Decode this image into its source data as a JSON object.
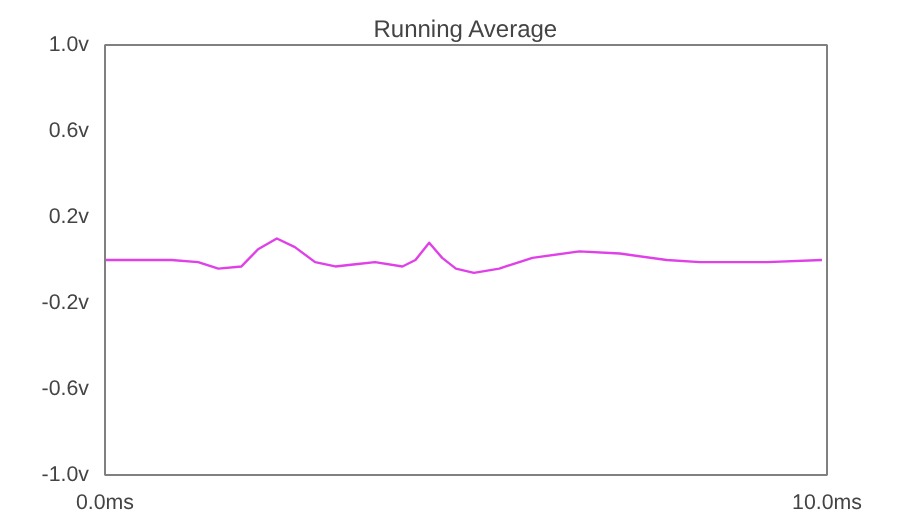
{
  "chart_data": {
    "type": "line",
    "title": "Running Average",
    "x": [
      0,
      0.92,
      1.29,
      1.57,
      1.89,
      2.12,
      2.38,
      2.63,
      2.91,
      3.19,
      3.47,
      3.74,
      4.12,
      4.3,
      4.49,
      4.67,
      4.86,
      5.11,
      5.46,
      5.92,
      6.57,
      7.13,
      7.78,
      8.24,
      9.17,
      9.93
    ],
    "series": [
      {
        "color": "#e040e8",
        "values": [
          0,
          0,
          -0.01,
          -0.04,
          -0.03,
          0.05,
          0.1,
          0.06,
          -0.01,
          -0.03,
          -0.02,
          -0.01,
          -0.03,
          0,
          0.08,
          0.01,
          -0.04,
          -0.06,
          -0.04,
          0.01,
          0.04,
          0.03,
          0,
          -0.01,
          -0.01,
          0
        ]
      }
    ],
    "xlim": [
      0,
      10
    ],
    "ylim": [
      -1,
      1
    ],
    "xticks": [
      {
        "value": 0,
        "label": "0.0ms"
      },
      {
        "value": 10,
        "label": "10.0ms"
      }
    ],
    "yticks": [
      {
        "value": -1,
        "label": "-1.0v"
      },
      {
        "value": -0.6,
        "label": "-0.6v"
      },
      {
        "value": -0.2,
        "label": "-0.2v"
      },
      {
        "value": 0.2,
        "label": "0.2v"
      },
      {
        "value": 0.6,
        "label": "0.6v"
      },
      {
        "value": 1,
        "label": "1.0v"
      }
    ],
    "grid": false,
    "marker": "none",
    "line_style": "solid"
  }
}
